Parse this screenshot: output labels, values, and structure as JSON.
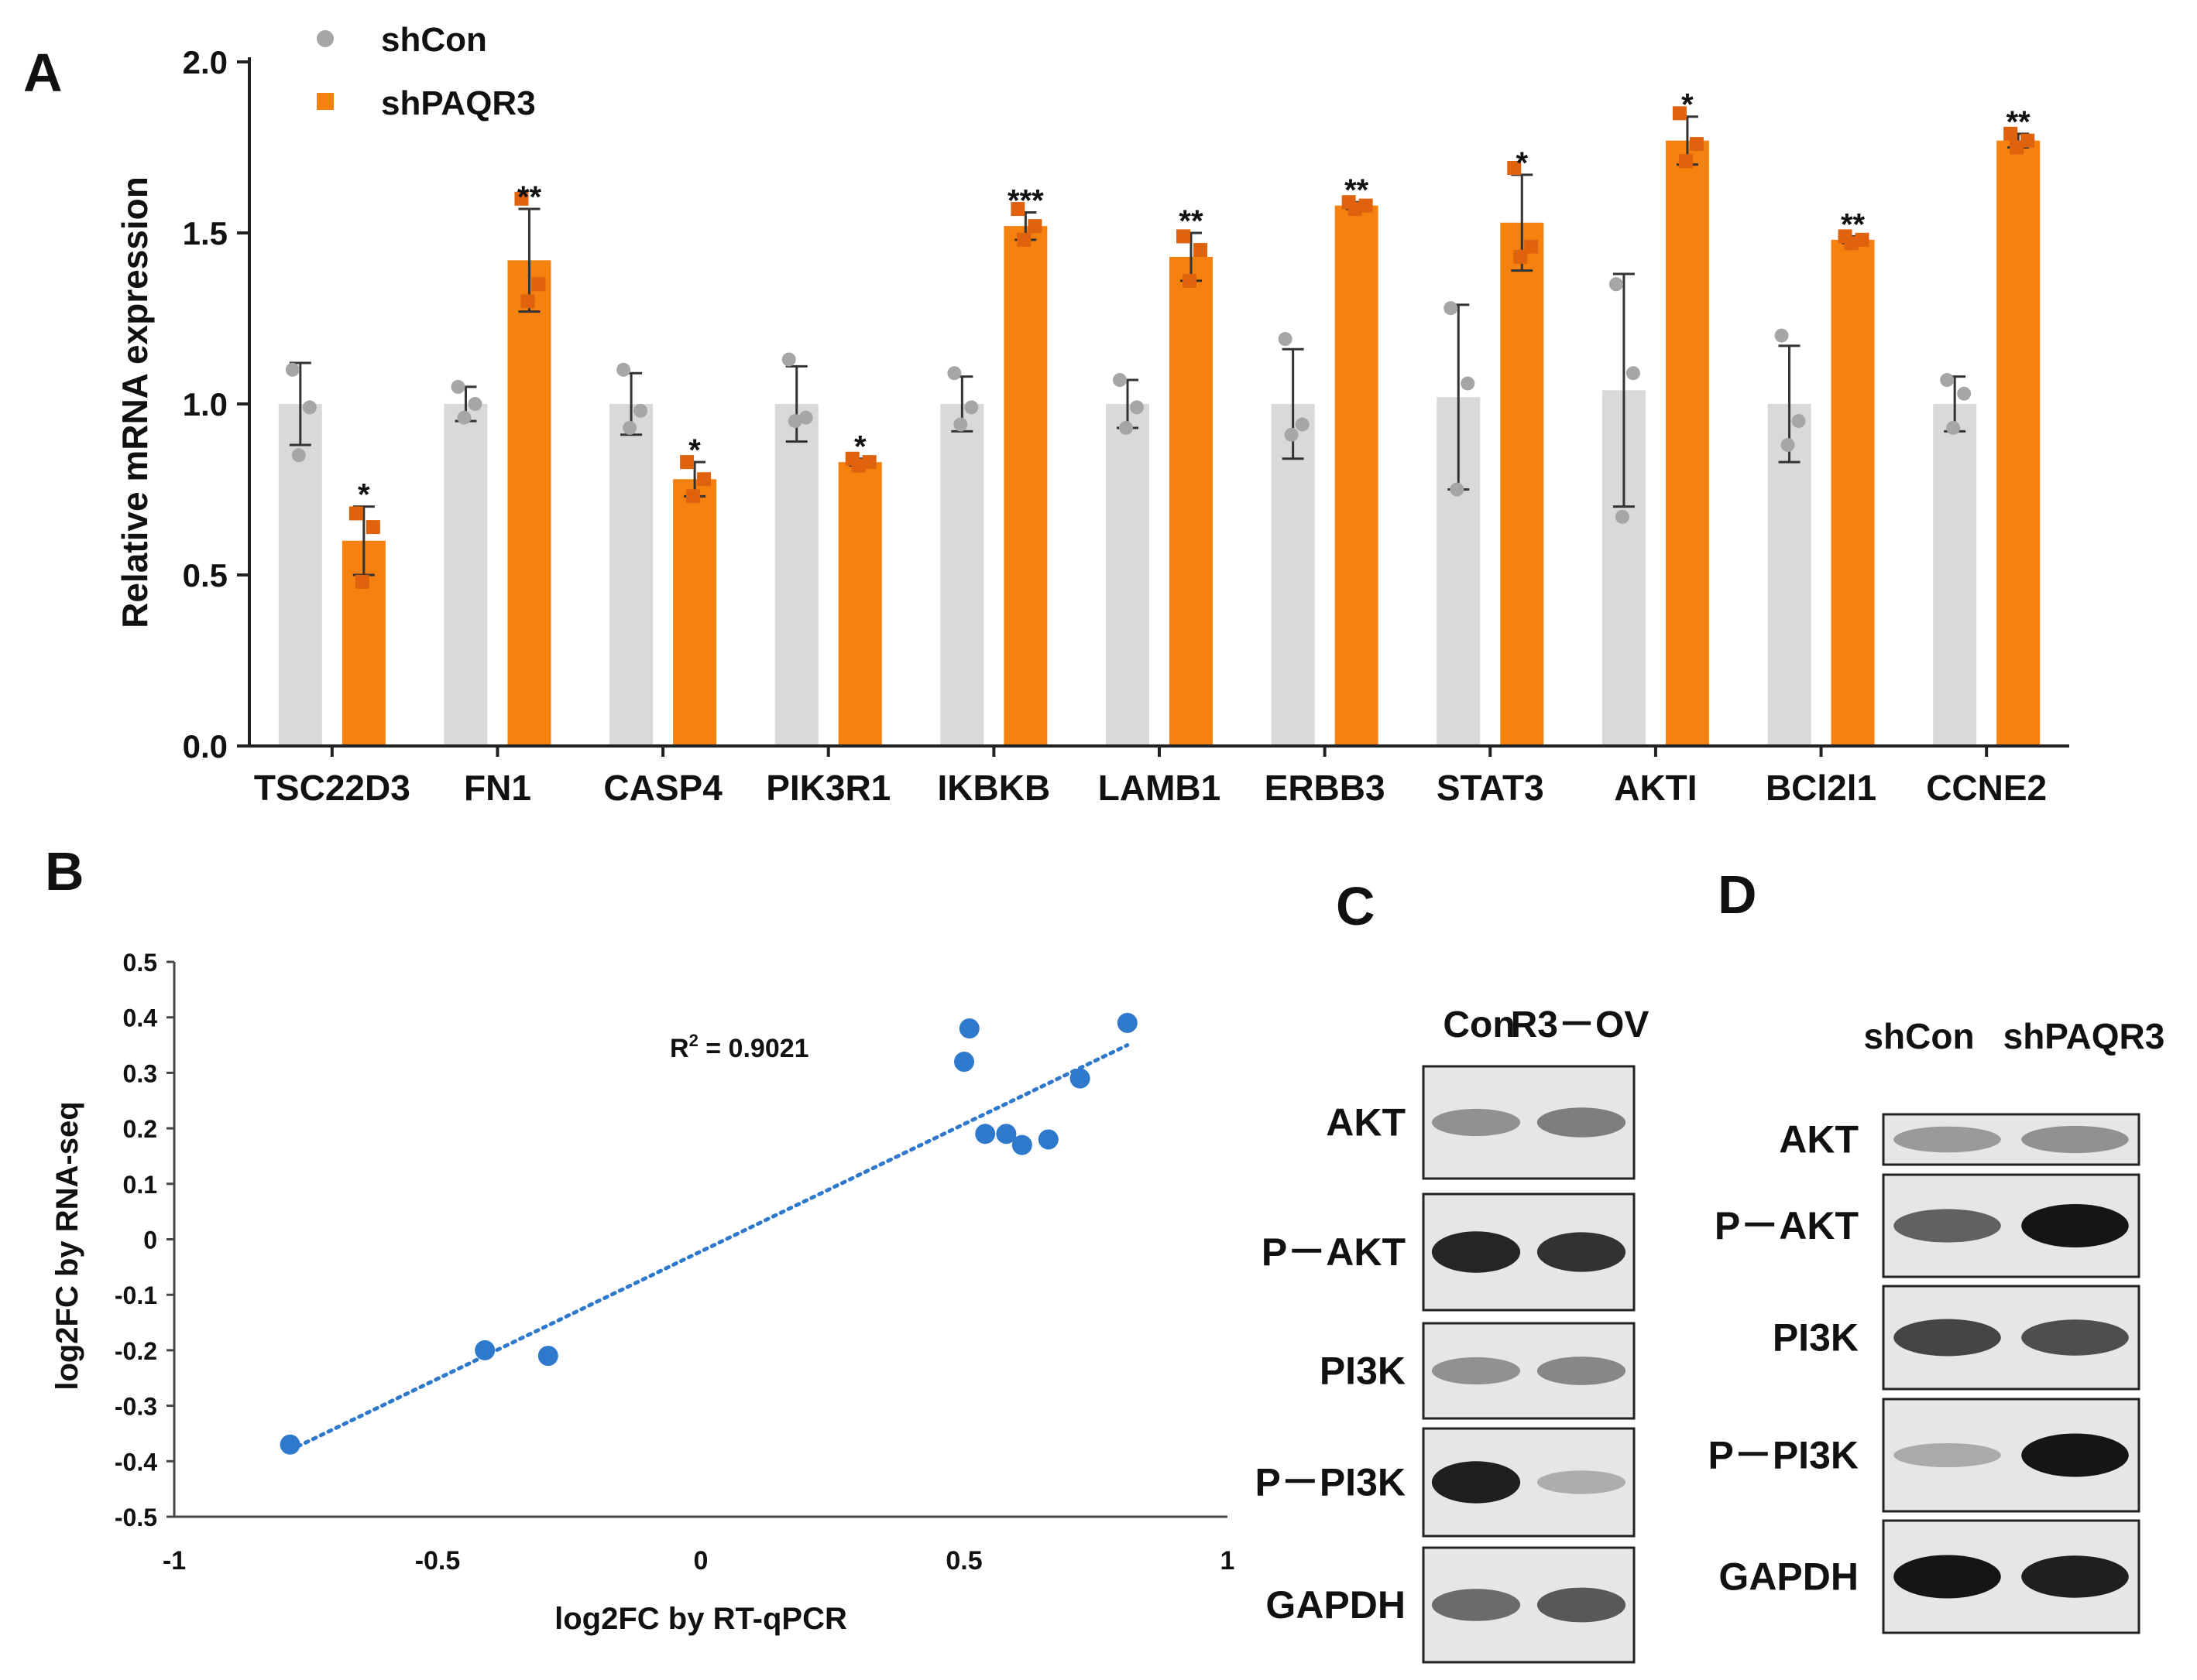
{
  "panels": {
    "a": {
      "label": "A"
    },
    "b": {
      "label": "B"
    },
    "c": {
      "label": "C"
    },
    "d": {
      "label": "D"
    }
  },
  "colors": {
    "shcon_bar": "#d9d9d9",
    "shcon_dot": "#a6a6a6",
    "shpaqr3_bar": "#f5820f",
    "shpaqr3_dot": "#e0620c",
    "scatter": "#2f79cc",
    "axis": "#222222"
  },
  "chart_data": [
    {
      "type": "bar",
      "title": "",
      "xlabel": "",
      "ylabel": "Relative mRNA expression",
      "ylim": [
        0,
        2.0
      ],
      "yticks": [
        "0.0",
        "0.5",
        "1.0",
        "1.5",
        "2.0"
      ],
      "legend_position": "top-left",
      "categories": [
        "TSC22D3",
        "FN1",
        "CASP4",
        "PIK3R1",
        "IKBKB",
        "LAMB1",
        "ERBB3",
        "STAT3",
        "AKTI",
        "BCl2l1",
        "CCNE2"
      ],
      "series": [
        {
          "name": "shCon",
          "values": [
            1.0,
            1.0,
            1.0,
            1.0,
            1.0,
            1.0,
            1.0,
            1.02,
            1.04,
            1.0,
            1.0
          ],
          "errors": [
            0.12,
            0.05,
            0.09,
            0.11,
            0.08,
            0.07,
            0.16,
            0.27,
            0.34,
            0.17,
            0.08
          ],
          "points": [
            [
              1.1,
              0.99,
              0.85
            ],
            [
              1.05,
              1.0,
              0.96
            ],
            [
              1.1,
              0.98,
              0.93
            ],
            [
              1.13,
              0.96,
              0.95
            ],
            [
              1.09,
              0.99,
              0.94
            ],
            [
              1.07,
              0.99,
              0.93
            ],
            [
              1.19,
              0.94,
              0.91
            ],
            [
              1.28,
              1.06,
              0.75
            ],
            [
              1.35,
              1.09,
              0.67
            ],
            [
              1.2,
              0.95,
              0.88
            ],
            [
              1.07,
              1.03,
              0.93
            ]
          ]
        },
        {
          "name": "shPAQR3",
          "values": [
            0.6,
            1.42,
            0.78,
            0.83,
            1.52,
            1.43,
            1.58,
            1.53,
            1.77,
            1.48,
            1.77
          ],
          "errors": [
            0.1,
            0.15,
            0.05,
            0.01,
            0.04,
            0.07,
            0.01,
            0.14,
            0.07,
            0.01,
            0.02
          ],
          "points": [
            [
              0.68,
              0.64,
              0.48
            ],
            [
              1.6,
              1.35,
              1.3
            ],
            [
              0.83,
              0.78,
              0.73
            ],
            [
              0.84,
              0.83,
              0.82
            ],
            [
              1.57,
              1.52,
              1.48
            ],
            [
              1.49,
              1.45,
              1.36
            ],
            [
              1.59,
              1.58,
              1.57
            ],
            [
              1.69,
              1.46,
              1.43
            ],
            [
              1.85,
              1.76,
              1.71
            ],
            [
              1.49,
              1.48,
              1.47
            ],
            [
              1.79,
              1.77,
              1.75
            ]
          ]
        }
      ],
      "significance": [
        "*",
        "**",
        "*",
        "*",
        "***",
        "**",
        "**",
        "*",
        "*",
        "**",
        "**"
      ]
    },
    {
      "type": "scatter",
      "xlabel": "log2FC by RT-qPCR",
      "ylabel": "log2FC by RNA-seq",
      "xlim": [
        -1,
        1
      ],
      "ylim": [
        -0.5,
        0.5
      ],
      "xticks": [
        "-1",
        "-0.5",
        "0",
        "0.5",
        "1"
      ],
      "yticks": [
        "0.5",
        "0.4",
        "0.3",
        "0.2",
        "0.1",
        "0",
        "-0.1",
        "-0.2",
        "-0.3",
        "-0.4",
        "-0.5"
      ],
      "x": [
        -0.78,
        -0.41,
        -0.29,
        0.5,
        0.51,
        0.54,
        0.58,
        0.61,
        0.66,
        0.72,
        0.81
      ],
      "y": [
        -0.37,
        -0.2,
        -0.21,
        0.32,
        0.38,
        0.19,
        0.19,
        0.17,
        0.18,
        0.29,
        0.39
      ],
      "trendline": {
        "style": "dotted",
        "x": [
          -0.78,
          0.81
        ],
        "y": [
          -0.38,
          0.35
        ]
      },
      "annotation_prefix": "R",
      "annotation_sup": "2",
      "annotation_value": " = 0.9021"
    }
  ],
  "blot_c": {
    "headers": [
      "Con",
      "R3－OV"
    ],
    "rows": [
      {
        "label": "AKT",
        "bands": [
          0.35,
          0.45
        ]
      },
      {
        "label": "P－AKT",
        "bands": [
          0.92,
          0.85
        ]
      },
      {
        "label": "PI3K",
        "bands": [
          0.35,
          0.4
        ]
      },
      {
        "label": "P－PI3K",
        "bands": [
          0.95,
          0.2
        ]
      },
      {
        "label": "GAPDH",
        "bands": [
          0.55,
          0.65
        ]
      }
    ]
  },
  "blot_d": {
    "headers": [
      "shCon",
      "shPAQR3"
    ],
    "rows": [
      {
        "label": "AKT",
        "bands": [
          0.3,
          0.35
        ]
      },
      {
        "label": "P－AKT",
        "bands": [
          0.6,
          1.0
        ]
      },
      {
        "label": "PI3K",
        "bands": [
          0.75,
          0.7
        ]
      },
      {
        "label": "P－PI3K",
        "bands": [
          0.22,
          1.0
        ]
      },
      {
        "label": "GAPDH",
        "bands": [
          1.0,
          0.95
        ]
      }
    ]
  }
}
